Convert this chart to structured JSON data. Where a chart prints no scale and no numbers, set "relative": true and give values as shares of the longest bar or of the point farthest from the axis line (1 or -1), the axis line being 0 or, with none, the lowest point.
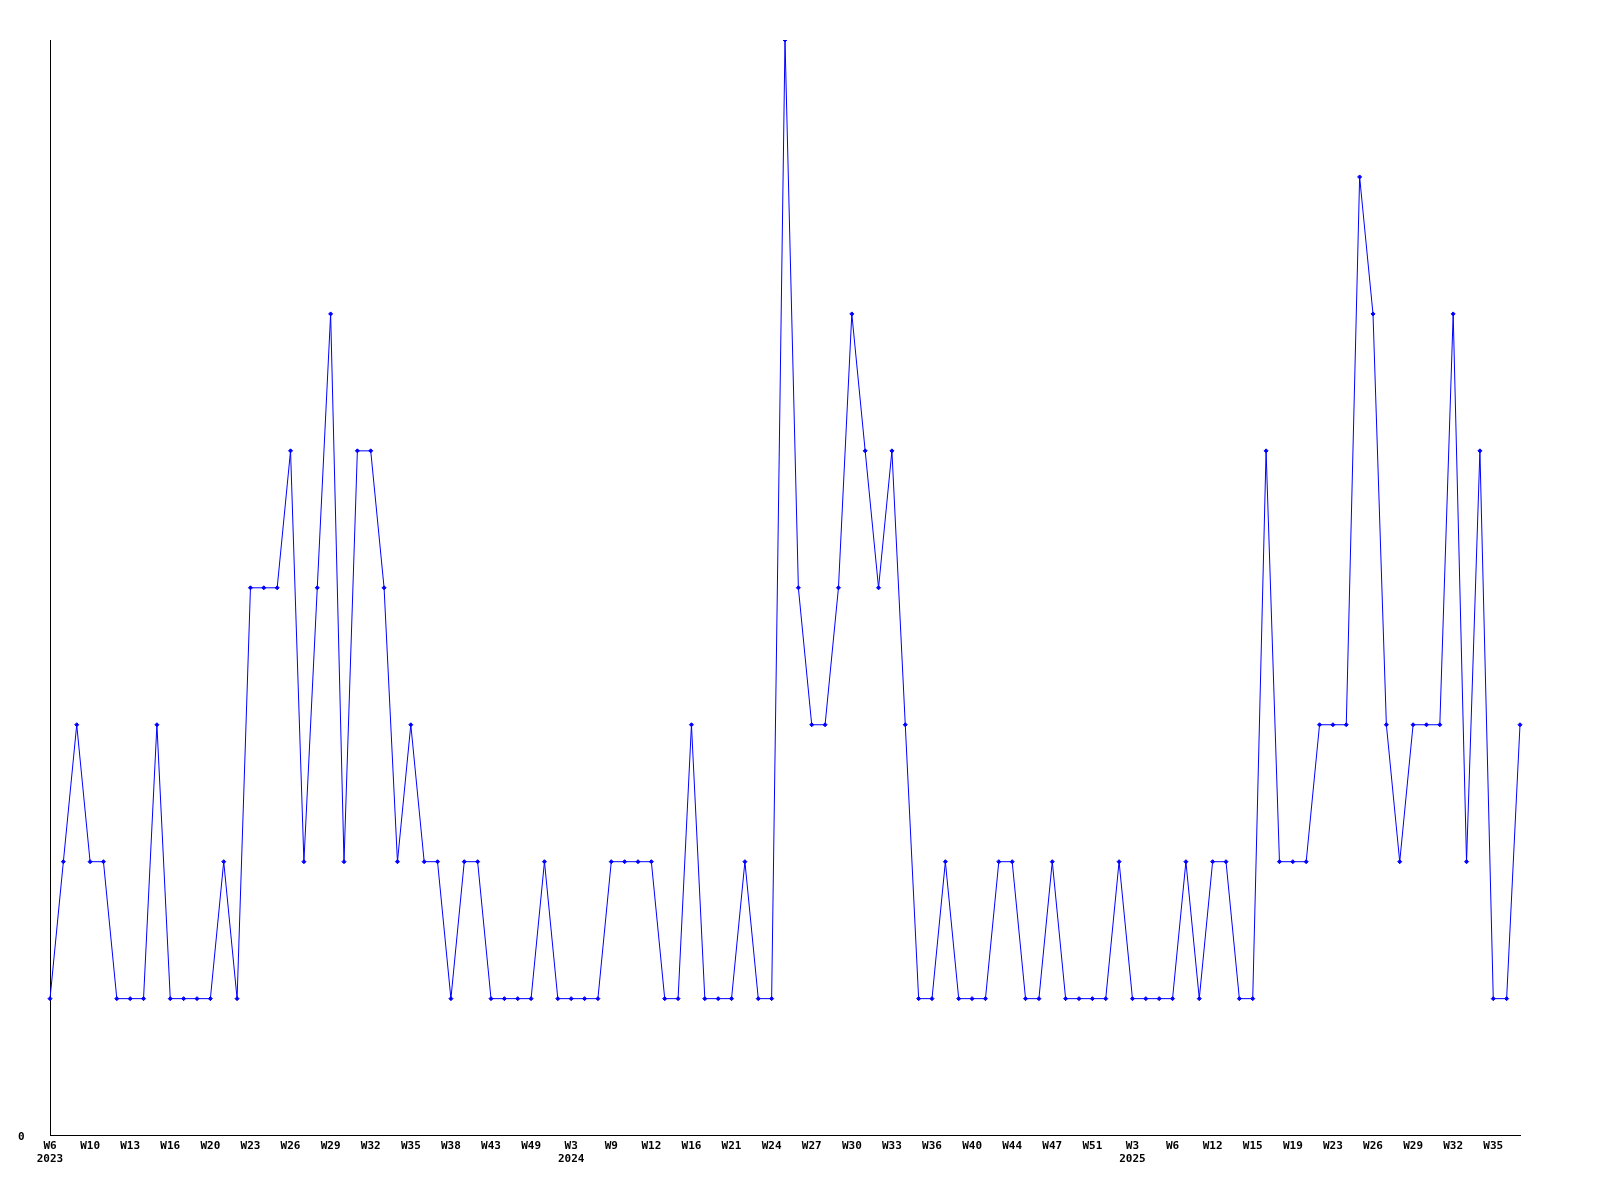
{
  "chart_data": {
    "type": "line",
    "relative": true,
    "color": "#0000ff",
    "marker": "diamond",
    "grid": false,
    "legend": false,
    "categories": [
      "W6\n2023",
      null,
      null,
      "W10",
      null,
      null,
      "W13",
      null,
      null,
      "W16",
      null,
      null,
      "W20",
      null,
      null,
      "W23",
      null,
      null,
      "W26",
      null,
      null,
      "W29",
      null,
      null,
      "W32",
      null,
      null,
      "W35",
      null,
      null,
      "W38",
      null,
      null,
      "W43",
      null,
      null,
      "W49",
      null,
      null,
      "W3\n2024",
      null,
      null,
      "W9",
      null,
      null,
      "W12",
      null,
      null,
      "W16",
      null,
      null,
      "W21",
      null,
      null,
      "W24",
      null,
      null,
      "W27",
      null,
      null,
      "W30",
      null,
      null,
      "W33",
      null,
      null,
      "W36",
      null,
      null,
      "W40",
      null,
      null,
      "W44",
      null,
      null,
      "W47",
      null,
      null,
      "W51",
      null,
      null,
      "W3\n2025",
      null,
      null,
      "W6",
      null,
      null,
      "W12",
      null,
      null,
      "W15",
      null,
      null,
      "W19",
      null,
      null,
      "W23",
      null,
      null,
      "W26",
      null,
      null,
      "W29",
      null,
      null,
      "W32",
      null,
      null,
      "W35",
      null,
      null
    ],
    "values": [
      0.125,
      0.25,
      0.375,
      0.25,
      0.25,
      0.125,
      0.125,
      0.125,
      0.375,
      0.125,
      0.125,
      0.125,
      0.125,
      0.25,
      0.125,
      0.5,
      0.5,
      0.5,
      0.625,
      0.25,
      0.5,
      0.75,
      0.25,
      0.625,
      0.625,
      0.5,
      0.25,
      0.375,
      0.25,
      0.25,
      0.125,
      0.25,
      0.25,
      0.125,
      0.125,
      0.125,
      0.125,
      0.25,
      0.125,
      0.125,
      0.125,
      0.125,
      0.25,
      0.25,
      0.25,
      0.25,
      0.125,
      0.125,
      0.375,
      0.125,
      0.125,
      0.125,
      0.25,
      0.125,
      0.125,
      1,
      0.5,
      0.375,
      0.375,
      0.5,
      0.75,
      0.625,
      0.5,
      0.625,
      0.375,
      0.125,
      0.125,
      0.25,
      0.125,
      0.125,
      0.125,
      0.25,
      0.25,
      0.125,
      0.125,
      0.25,
      0.125,
      0.125,
      0.125,
      0.125,
      0.25,
      0.125,
      0.125,
      0.125,
      0.125,
      0.25,
      0.125,
      0.25,
      0.25,
      0.125,
      0.125,
      0.625,
      0.25,
      0.25,
      0.25,
      0.375,
      0.375,
      0.375,
      0.875,
      0.75,
      0.375,
      0.25,
      0.375,
      0.375,
      0.375,
      0.75,
      0.25,
      0.625,
      0.125,
      0.125,
      0.375
    ],
    "annotations": [
      "0"
    ]
  }
}
